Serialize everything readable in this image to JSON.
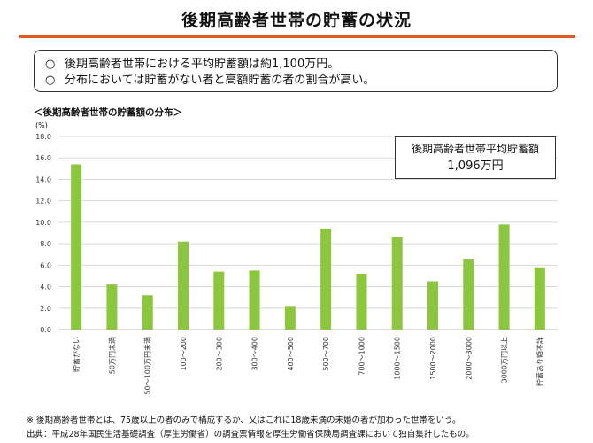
{
  "page": {
    "title": "後期高齢者世帯の貯蓄の状況",
    "summary": [
      {
        "mark": "○",
        "text": "後期高齢者世帯における平均貯蓄額は約1,100万円。"
      },
      {
        "mark": "○",
        "text": "分布においては貯蓄がない者と高額貯蓄の者の割合が高い。"
      }
    ],
    "average_box": {
      "label": "後期高齢者世帯平均貯蓄額",
      "value": "1,096万円"
    },
    "footnote": "※ 後期高齢者世帯とは、75歳以上の者のみで構成するか、又はこれに18歳未満の未婚の者が加わった世帯をいう。",
    "source": "出典：平成28年国民生活基礎調査（厚生労働省）の調査票情報を厚生労働省保険局調査課において独自集計したもの。"
  },
  "chart_data": {
    "type": "bar",
    "title": "＜後期高齢者世帯の貯蓄額の分布＞",
    "ylabel": "(%)",
    "ylim": [
      0,
      18
    ],
    "yticks": [
      "0.0",
      "2.0",
      "4.0",
      "6.0",
      "8.0",
      "10.0",
      "12.0",
      "14.0",
      "16.0",
      "18.0"
    ],
    "grid": true,
    "bar_color": "#8cc63f",
    "categories": [
      "貯蓄がない",
      "50万円未満",
      "50〜100万円未満",
      "100〜200",
      "200〜300",
      "300〜400",
      "400〜500",
      "500〜700",
      "700〜1000",
      "1000〜1500",
      "1500〜2000",
      "2000〜3000",
      "3000万円以上",
      "貯蓄あり額不詳"
    ],
    "values": [
      15.4,
      4.2,
      3.2,
      8.2,
      5.4,
      5.5,
      2.2,
      9.4,
      5.2,
      8.6,
      4.5,
      6.6,
      9.8,
      5.8
    ]
  }
}
